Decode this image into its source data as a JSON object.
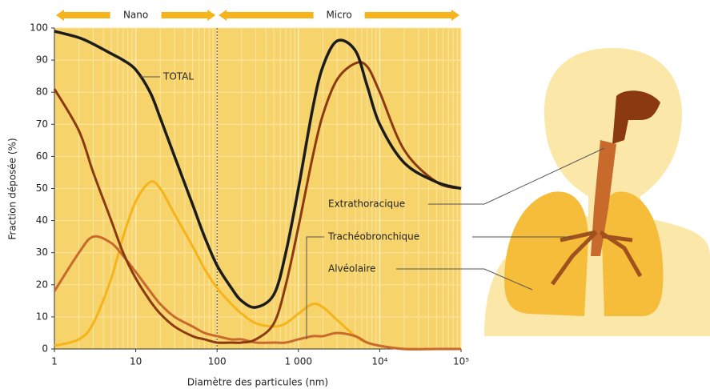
{
  "chart_data": {
    "type": "line",
    "x_log": true,
    "xlabel": "Diamètre des particules (nm)",
    "ylabel": "Fraction déposée (%)",
    "xlim": [
      1,
      100000
    ],
    "ylim": [
      0,
      100
    ],
    "xticks": [
      1,
      10,
      100,
      {
        "value": 1000,
        "label": "1 000"
      },
      {
        "value": 10000,
        "label": "10⁴"
      },
      {
        "value": 100000,
        "label": "10⁵"
      }
    ],
    "yticks": [
      0,
      10,
      20,
      30,
      40,
      50,
      60,
      70,
      80,
      90,
      100
    ],
    "regions": [
      {
        "label": "Nano",
        "from": 1,
        "to": 100
      },
      {
        "label": "Micro",
        "from": 100,
        "to": 100000
      }
    ],
    "x": [
      1,
      2,
      3,
      5,
      7,
      10,
      15,
      20,
      30,
      50,
      70,
      100,
      150,
      200,
      300,
      500,
      700,
      1000,
      1500,
      2000,
      3000,
      5000,
      7000,
      10000,
      20000,
      50000,
      100000
    ],
    "series": [
      {
        "name": "TOTAL",
        "color": "#1c1c1c",
        "values": [
          99,
          97,
          95,
          92,
          90,
          87,
          80,
          72,
          60,
          45,
          35,
          26,
          19,
          15,
          13,
          17,
          30,
          50,
          75,
          88,
          96,
          93,
          82,
          70,
          58,
          52,
          50
        ]
      },
      {
        "name": "Extrathoracique",
        "color": "#8b3a10",
        "values": [
          81,
          68,
          55,
          40,
          30,
          22,
          15,
          11,
          7,
          4,
          3,
          2,
          2,
          2,
          3,
          8,
          20,
          38,
          60,
          73,
          84,
          89,
          88,
          80,
          62,
          52,
          50
        ]
      },
      {
        "name": "Trachéobronchique",
        "color": "#c86a2c",
        "values": [
          18,
          30,
          35,
          33,
          29,
          24,
          18,
          14,
          10,
          7,
          5,
          4,
          3,
          3,
          2,
          2,
          2,
          3,
          4,
          4,
          5,
          4,
          2,
          1,
          0,
          0,
          0
        ]
      },
      {
        "name": "Alvéolaire",
        "color": "#f5b41c",
        "values": [
          1,
          3,
          8,
          22,
          35,
          46,
          52,
          50,
          42,
          32,
          25,
          19,
          14,
          11,
          8,
          7,
          8,
          11,
          14,
          13,
          9,
          4,
          2,
          1,
          0,
          0,
          0
        ]
      }
    ]
  }
}
